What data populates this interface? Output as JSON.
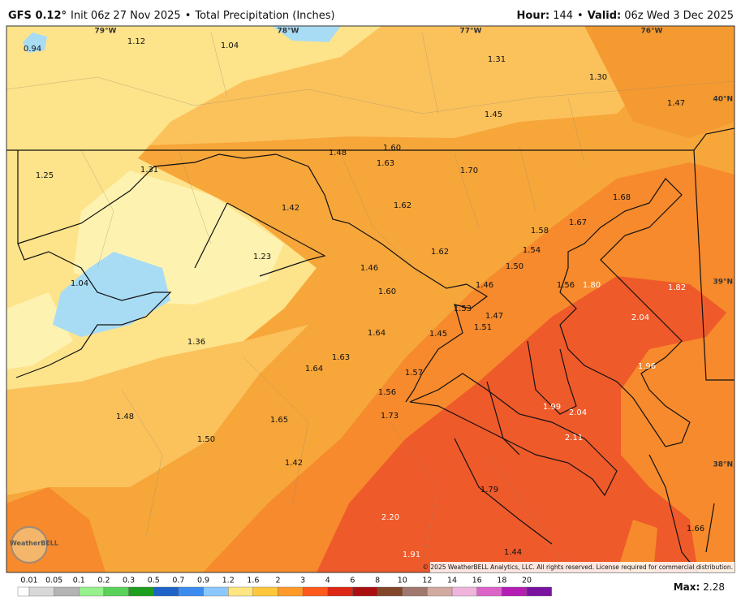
{
  "header": {
    "model": "GFS 0.12°",
    "init": "Init 06z 27 Nov 2025",
    "sep": "•",
    "product": "Total Precipitation (Inches)",
    "hour_label": "Hour:",
    "hour": "144",
    "valid_label": "Valid:",
    "valid": "06z Wed 3 Dec 2025"
  },
  "geo_labels": [
    "79°W",
    "78°W",
    "77°W",
    "76°W",
    "40°N",
    "39°N",
    "38°N"
  ],
  "map_values": [
    "0.94",
    "1.12",
    "1.04",
    "1.31",
    "1.30",
    "1.47",
    "1.45",
    "1.48",
    "1.60",
    "1.63",
    "1.70",
    "1.25",
    "1.31",
    "1.42",
    "1.62",
    "1.68",
    "1.67",
    "1.58",
    "1.54",
    "1.62",
    "1.23",
    "1.46",
    "1.50",
    "1.04",
    "1.46",
    "1.56",
    "1.80",
    "1.82",
    "1.60",
    "1.53",
    "1.47",
    "1.51",
    "2.04",
    "1.64",
    "1.45",
    "1.36",
    "1.63",
    "1.96",
    "1.64",
    "1.57",
    "1.56",
    "1.99",
    "2.04",
    "1.48",
    "1.73",
    "1.65",
    "2.11",
    "1.50",
    "1.42",
    "1.79",
    "2.20",
    "1.66",
    "1.91",
    "1.44"
  ],
  "logo": "WeatherBELL",
  "copyright": "© 2025 WeatherBELL Analytics, LLC. All rights reserved. License required for commercial distribution.",
  "legend": [
    "0.01",
    "0.05",
    "0.1",
    "0.2",
    "0.3",
    "0.5",
    "0.7",
    "0.9",
    "1.2",
    "1.6",
    "2",
    "3",
    "4",
    "6",
    "8",
    "10",
    "12",
    "14",
    "16",
    "18",
    "20"
  ],
  "max_label": "Max:",
  "max": "2.28"
}
